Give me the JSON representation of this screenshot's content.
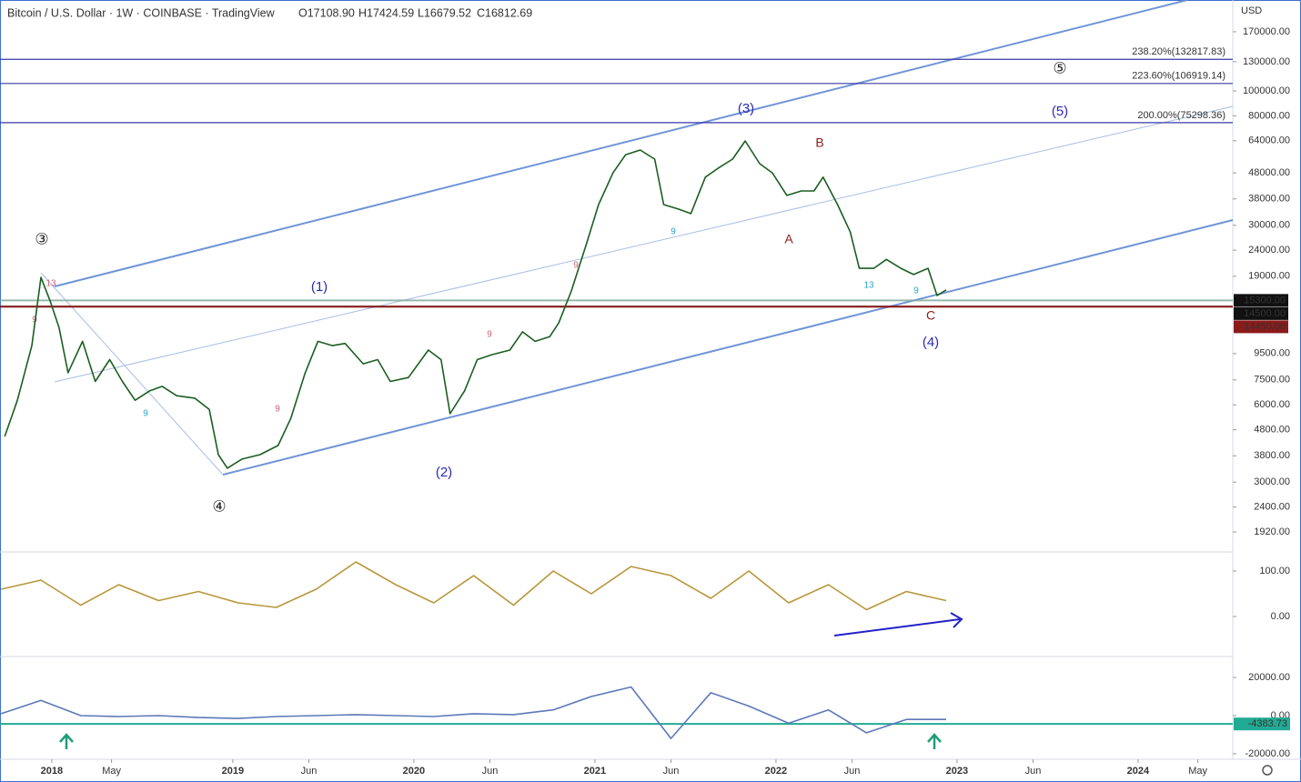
{
  "chart_data": [
    {
      "type": "line",
      "title": "Bitcoin / U.S. Dollar · 1W · COINBASE · TradingView",
      "ohlc": [
        "O17108.90",
        "H17424.59",
        "L16679.52",
        "C16812.69"
      ],
      "currency": "USD",
      "log_scale": true,
      "x": [
        2017.74,
        2017.81,
        2017.89,
        2017.94,
        2017.99,
        2018.04,
        2018.09,
        2018.17,
        2018.24,
        2018.32,
        2018.39,
        2018.46,
        2018.54,
        2018.61,
        2018.69,
        2018.79,
        2018.87,
        2018.92,
        2018.97,
        2019.05,
        2019.15,
        2019.25,
        2019.32,
        2019.4,
        2019.47,
        2019.55,
        2019.62,
        2019.72,
        2019.8,
        2019.87,
        2019.97,
        2020.08,
        2020.15,
        2020.2,
        2020.28,
        2020.35,
        2020.43,
        2020.53,
        2020.6,
        2020.67,
        2020.75,
        2020.8,
        2020.87,
        2020.95,
        2021.02,
        2021.1,
        2021.17,
        2021.25,
        2021.33,
        2021.38,
        2021.46,
        2021.53,
        2021.61,
        2021.68,
        2021.76,
        2021.83,
        2021.91,
        2021.98,
        2022.06,
        2022.14,
        2022.21,
        2022.26,
        2022.34,
        2022.41,
        2022.46,
        2022.54,
        2022.61,
        2022.69,
        2022.76,
        2022.84,
        2022.89,
        2022.94
      ],
      "series": [
        {
          "color": "#1b5e20",
          "values": [
            4520,
            6250,
            10200,
            18800,
            15300,
            12000,
            8000,
            10600,
            7400,
            9000,
            7400,
            6250,
            6800,
            7080,
            6510,
            6370,
            5760,
            3840,
            3400,
            3690,
            3840,
            4170,
            5310,
            8000,
            10600,
            10200,
            10400,
            8670,
            9000,
            7400,
            7660,
            9800,
            9000,
            5540,
            6800,
            9000,
            9400,
            9800,
            11550,
            10600,
            11050,
            12500,
            16650,
            25000,
            36100,
            48000,
            56500,
            58900,
            54300,
            36100,
            34700,
            33300,
            46200,
            50000,
            54300,
            63900,
            52100,
            48000,
            39200,
            40800,
            40800,
            46200,
            36100,
            28300,
            20400,
            20400,
            22100,
            20400,
            19300,
            20400,
            15990,
            16813
          ]
        }
      ],
      "xlim": [
        2017.714,
        2024.523
      ],
      "xticks": [
        2018,
        {
          "value": 2018.33,
          "label": "May"
        },
        2019,
        {
          "value": 2019.42,
          "label": "Jun"
        },
        2020,
        {
          "value": 2020.42,
          "label": "Jun"
        },
        2021,
        {
          "value": 2021.42,
          "label": "Jun"
        },
        2022,
        {
          "value": 2022.42,
          "label": "Jun"
        },
        2023,
        {
          "value": 2023.42,
          "label": "Jun"
        },
        2024,
        {
          "value": 2024.33,
          "label": "May"
        }
      ],
      "ylim": [
        1605,
        226000
      ],
      "yticks": [
        {
          "value": 170000,
          "label": "170000.00"
        },
        {
          "value": 130000,
          "label": "130000.00"
        },
        {
          "value": 100000,
          "label": "100000.00"
        },
        {
          "value": 80000,
          "label": "80000.00"
        },
        {
          "value": 64000,
          "label": "64000.00"
        },
        {
          "value": 48000,
          "label": "48000.00"
        },
        {
          "value": 38000,
          "label": "38000.00"
        },
        {
          "value": 30000,
          "label": "30000.00"
        },
        {
          "value": 24000,
          "label": "24000.00"
        },
        {
          "value": 19000,
          "label": "19000.00"
        },
        {
          "value": 9500,
          "label": "9500.00"
        },
        {
          "value": 7500,
          "label": "7500.00"
        },
        {
          "value": 6000,
          "label": "6000.00"
        },
        {
          "value": 4800,
          "label": "4800.00"
        },
        {
          "value": 3800,
          "label": "3800.00"
        },
        {
          "value": 3000,
          "label": "3000.00"
        },
        {
          "value": 2400,
          "label": "2400.00"
        },
        {
          "value": 1920,
          "label": "1920.00"
        }
      ],
      "levels": [
        {
          "value": 132817.83,
          "label": "238.20%(132817.83)",
          "color": "#3a3aa8"
        },
        {
          "value": 106919.14,
          "label": "223.60%(106919.14)",
          "color": "#3a3aa8"
        },
        {
          "value": 75298.36,
          "label": "200.00%(75298.36)",
          "color": "#3a3aa8"
        }
      ],
      "price_levels": [
        {
          "value": 15300,
          "label": "15300.00",
          "color": "#7fa89a",
          "box": "#111111"
        },
        {
          "value": 14500,
          "label": "14500.00",
          "color": "#7a1f1f",
          "box": "#111111"
        },
        {
          "value": 14450,
          "label": "14450.00",
          "color": "#8b1a1a",
          "box": "#8b1a1a"
        }
      ],
      "annotations": [
        "③",
        "(1)",
        "④",
        "(2)",
        "(3)",
        "B",
        "A",
        "C",
        "(4)",
        "⑤",
        "(5)",
        "9",
        "9",
        "13",
        "9",
        "9",
        "9",
        "9",
        "9",
        "13"
      ]
    },
    {
      "type": "line",
      "x": [
        2017.72,
        2017.94,
        2018.16,
        2018.37,
        2018.59,
        2018.81,
        2019.03,
        2019.24,
        2019.46,
        2019.68,
        2019.9,
        2020.11,
        2020.33,
        2020.55,
        2020.77,
        2020.98,
        2021.2,
        2021.42,
        2021.64,
        2021.85,
        2022.07,
        2022.29,
        2022.5,
        2022.72,
        2022.94
      ],
      "series": [
        {
          "color": "#b8963a",
          "values": [
            60,
            80,
            25,
            70,
            35,
            55,
            30,
            20,
            60,
            120,
            70,
            30,
            90,
            25,
            100,
            50,
            110,
            90,
            40,
            100,
            30,
            70,
            15,
            55,
            35
          ]
        }
      ],
      "xlim": [
        2017.714,
        2024.523
      ],
      "ylim": [
        -88,
        142
      ],
      "yticks": [
        {
          "value": 100,
          "label": "100.00"
        },
        {
          "value": 0,
          "label": "0.00"
        }
      ]
    },
    {
      "type": "line",
      "x": [
        2017.72,
        2017.94,
        2018.16,
        2018.37,
        2018.59,
        2018.81,
        2019.03,
        2019.24,
        2019.46,
        2019.68,
        2019.9,
        2020.11,
        2020.33,
        2020.55,
        2020.77,
        2020.98,
        2021.2,
        2021.42,
        2021.64,
        2021.85,
        2022.07,
        2022.29,
        2022.5,
        2022.72,
        2022.94
      ],
      "series": [
        {
          "color": "#5b78b8",
          "values": [
            1000,
            8000,
            0,
            -500,
            0,
            -1000,
            -1500,
            -500,
            0,
            500,
            0,
            -500,
            1000,
            500,
            3000,
            10000,
            15000,
            -12000,
            12000,
            5000,
            -4000,
            3000,
            -9000,
            -2000,
            -2000
          ]
        }
      ],
      "xlim": [
        2017.714,
        2024.523
      ],
      "ylim": [
        -22900,
        31000
      ],
      "yticks": [
        {
          "value": 20000,
          "label": "20000.00"
        },
        {
          "value": 0,
          "label": "0.00"
        },
        {
          "value": -20000,
          "label": "-20000.00"
        }
      ],
      "level": {
        "value": -4383.73,
        "label": "-4383.73",
        "color": "#22ab94"
      }
    }
  ]
}
